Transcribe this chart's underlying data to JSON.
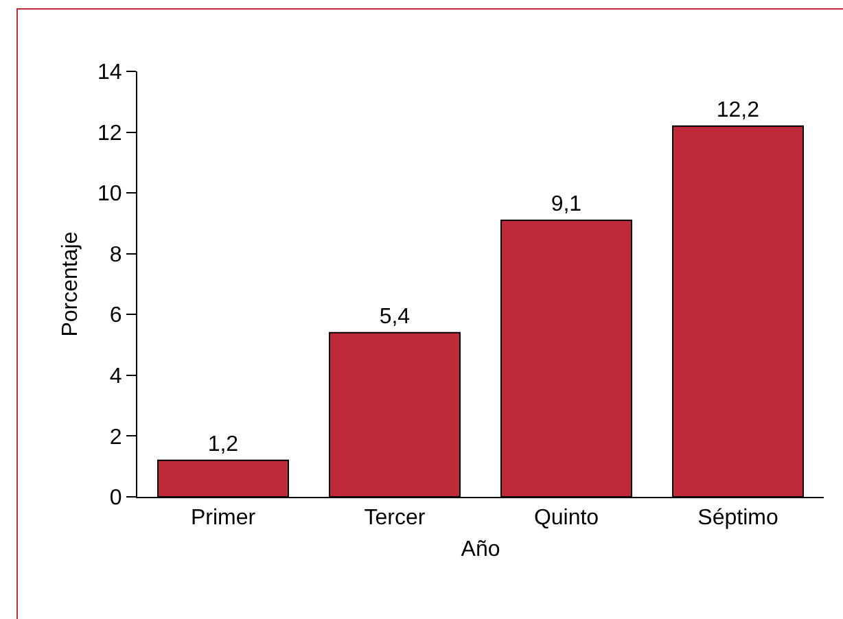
{
  "chart_data": {
    "type": "bar",
    "xlabel": "Año",
    "ylabel": "Porcentaje",
    "categories": [
      "Primer",
      "Tercer",
      "Quinto",
      "Séptimo"
    ],
    "values": [
      1.2,
      5.4,
      9.1,
      12.2
    ],
    "value_labels": [
      "1,2",
      "5,4",
      "9,1",
      "12,2"
    ],
    "color": "#be2a3a",
    "ylim": [
      0,
      14
    ],
    "yticks": [
      0,
      2,
      4,
      6,
      8,
      10,
      12,
      14
    ],
    "grid": false
  }
}
